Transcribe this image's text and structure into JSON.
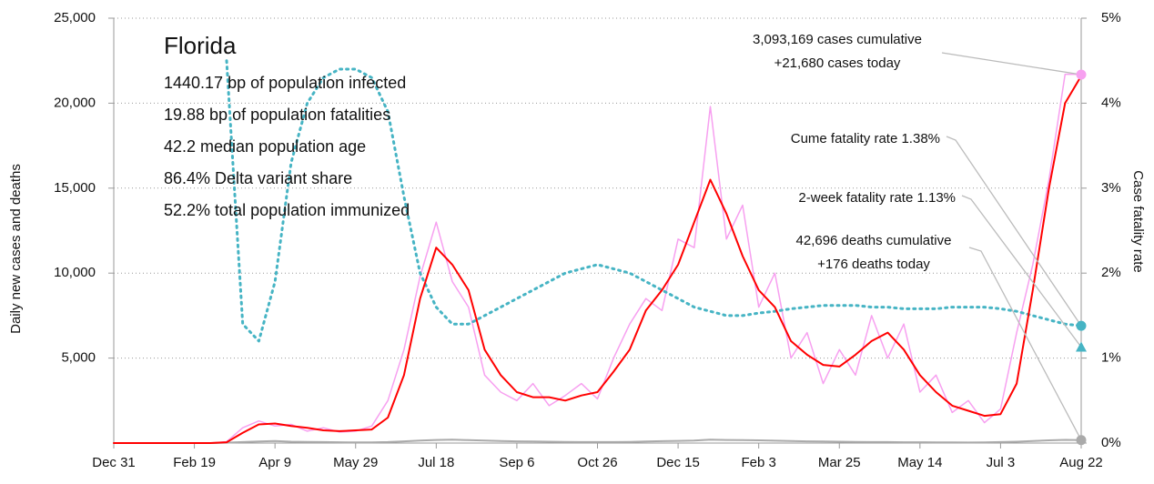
{
  "chart_data": {
    "type": "line",
    "info": {
      "title": "Florida",
      "lines": [
        "1440.17 bp of population infected",
        "19.88 bp of population fatalities",
        "42.2 median population age",
        "86.4% Delta variant share",
        "52.2% total population immunized"
      ]
    },
    "ylabel": "Daily new cases and deaths",
    "y2label": "Case fatality rate",
    "y2color": "#46b4c4",
    "grid": true,
    "categories": [
      "Dec 31",
      null,
      null,
      null,
      null,
      "Feb 19",
      null,
      null,
      null,
      null,
      "Apr 9",
      null,
      null,
      null,
      null,
      "May 29",
      null,
      null,
      null,
      null,
      "Jul 18",
      null,
      null,
      null,
      null,
      "Sep 6",
      null,
      null,
      null,
      null,
      "Oct 26",
      null,
      null,
      null,
      null,
      "Dec 15",
      null,
      null,
      null,
      null,
      "Feb 3",
      null,
      null,
      null,
      null,
      "Mar 25",
      null,
      null,
      null,
      null,
      "May 14",
      null,
      null,
      null,
      null,
      "Jul 3",
      null,
      null,
      null,
      null,
      "Aug 22"
    ],
    "ylim": [
      0,
      25000
    ],
    "yticks": [
      {
        "value": 5000,
        "label": "5,000"
      },
      {
        "value": 10000,
        "label": "10,000"
      },
      {
        "value": 15000,
        "label": "15,000"
      },
      {
        "value": 20000,
        "label": "20,000"
      },
      {
        "value": 25000,
        "label": "25,000"
      }
    ],
    "y2lim": [
      0,
      5
    ],
    "y2ticks": [
      {
        "value": 0,
        "label": "0%"
      },
      {
        "value": 1,
        "label": "1%"
      },
      {
        "value": 2,
        "label": "2%"
      },
      {
        "value": 3,
        "label": "3%"
      },
      {
        "value": 4,
        "label": "4%"
      },
      {
        "value": 5,
        "label": "5%"
      }
    ],
    "series": [
      {
        "color": "#f7a0f0",
        "width": 1.5,
        "values": [
          0,
          0,
          0,
          0,
          0,
          0,
          0,
          80,
          900,
          1300,
          1000,
          1100,
          700,
          900,
          650,
          700,
          1000,
          2500,
          5500,
          9800,
          13000,
          9500,
          8000,
          4000,
          3000,
          2500,
          3500,
          2200,
          2800,
          3500,
          2600,
          5000,
          7000,
          8500,
          7800,
          12000,
          11500,
          19800,
          12000,
          14000,
          8000,
          10000,
          5000,
          6500,
          3500,
          5500,
          4000,
          7500,
          5000,
          7000,
          3000,
          4000,
          1800,
          2500,
          1200,
          2000,
          6500,
          10500,
          15500,
          21700,
          21700
        ]
      },
      {
        "color": "#aaaaaa",
        "width": 2,
        "values": [
          0,
          0,
          0,
          0,
          0,
          0,
          0,
          20,
          60,
          90,
          120,
          80,
          70,
          60,
          50,
          40,
          40,
          60,
          100,
          150,
          180,
          200,
          170,
          150,
          120,
          100,
          90,
          80,
          70,
          60,
          60,
          60,
          70,
          90,
          110,
          130,
          150,
          200,
          180,
          170,
          160,
          140,
          120,
          100,
          90,
          80,
          70,
          60,
          60,
          50,
          50,
          40,
          40,
          30,
          40,
          60,
          80,
          120,
          160,
          190,
          176
        ]
      },
      {
        "color": "#46b4c4",
        "width": 3,
        "dash": "2 5",
        "axis": "y2",
        "values": [
          null,
          null,
          null,
          null,
          null,
          null,
          null,
          4.5,
          1.4,
          1.2,
          1.9,
          3.3,
          4.0,
          4.3,
          4.4,
          4.4,
          4.3,
          3.9,
          2.9,
          2.0,
          1.6,
          1.4,
          1.4,
          1.5,
          1.6,
          1.7,
          1.8,
          1.9,
          2.0,
          2.05,
          2.1,
          2.05,
          2.0,
          1.9,
          1.8,
          1.7,
          1.6,
          1.55,
          1.5,
          1.5,
          1.53,
          1.55,
          1.58,
          1.6,
          1.62,
          1.62,
          1.62,
          1.6,
          1.6,
          1.58,
          1.58,
          1.58,
          1.6,
          1.6,
          1.6,
          1.58,
          1.55,
          1.5,
          1.45,
          1.4,
          1.38
        ]
      },
      {
        "color": "#ff0000",
        "width": 2,
        "values": [
          0,
          0,
          0,
          0,
          0,
          0,
          0,
          50,
          600,
          1100,
          1150,
          1000,
          900,
          750,
          700,
          750,
          800,
          1500,
          4000,
          8500,
          11500,
          10500,
          9000,
          5500,
          4000,
          3000,
          2700,
          2700,
          2500,
          2800,
          3000,
          4200,
          5500,
          7800,
          9000,
          10500,
          13000,
          15500,
          13500,
          11000,
          9000,
          8000,
          6000,
          5200,
          4600,
          4500,
          5200,
          6000,
          6500,
          5500,
          4000,
          3000,
          2200,
          1900,
          1600,
          1700,
          3500,
          9000,
          15000,
          20000,
          21600
        ]
      }
    ],
    "annotations": [
      {
        "text": [
          "3,093,169 cases cumulative",
          "+21,680 cases today"
        ],
        "value": 21680,
        "color": "#f7a0f0"
      },
      {
        "text": [
          "Cume fatality rate 1.38%"
        ],
        "value": 1.38,
        "axis": "y2",
        "color": "#46b4c4"
      },
      {
        "text": [
          "2-week fatality rate 1.13%"
        ],
        "value": 1.13,
        "axis": "y2",
        "color": "#46b4c4"
      },
      {
        "text": [
          "42,696 deaths cumulative",
          "+176 deaths today"
        ],
        "value": 176,
        "color": "#aaaaaa"
      }
    ]
  }
}
